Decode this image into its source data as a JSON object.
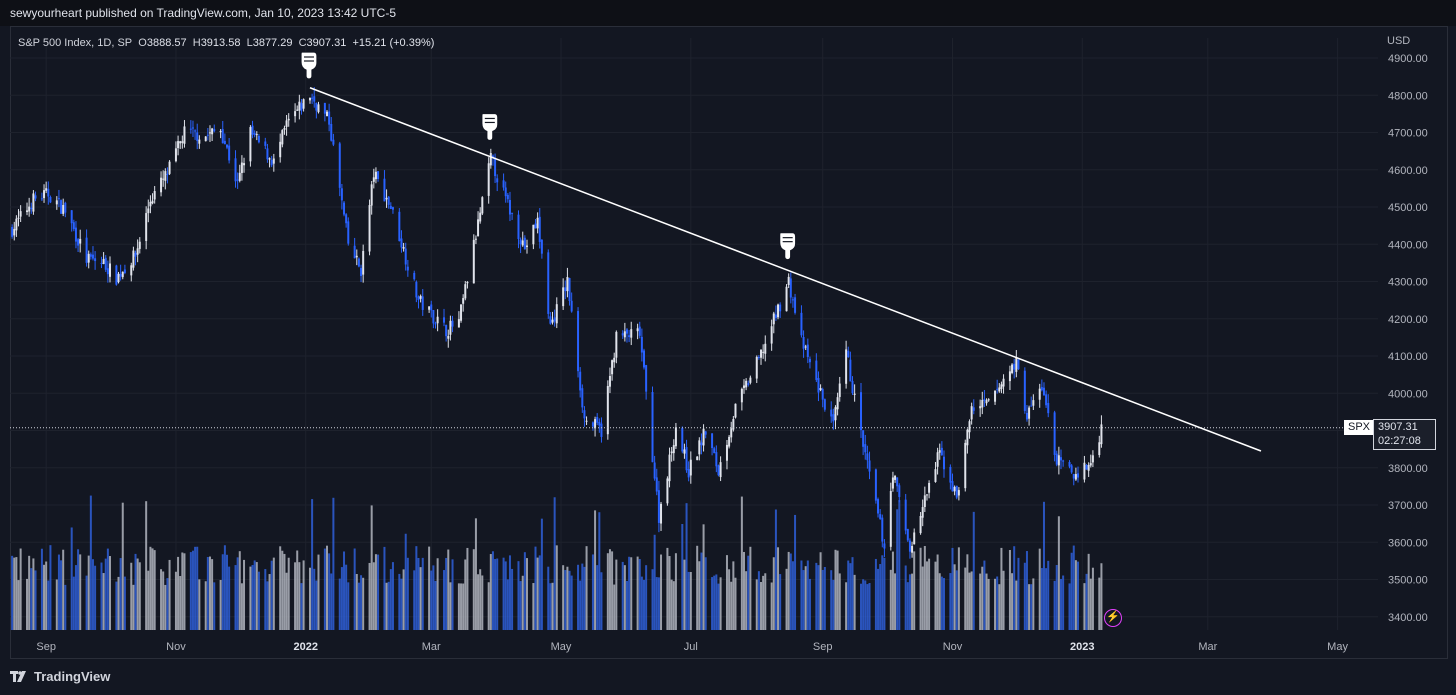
{
  "header": {
    "published_text": "sewyourheart published on TradingView.com, Jan 10, 2023 13:42 UTC-5"
  },
  "legend": {
    "symbol": "S&P 500 Index, 1D, SP",
    "open_label": "O",
    "open": "3888.57",
    "high_label": "H",
    "high": "3913.58",
    "low_label": "L",
    "low": "3877.29",
    "close_label": "C",
    "close": "3907.31",
    "change": "+15.21 (+0.39%)"
  },
  "price_tag": {
    "symbol": "SPX",
    "price": "3907.31",
    "countdown": "02:27:08"
  },
  "footer": {
    "brand": "TradingView"
  },
  "chart_data": {
    "type": "candlestick",
    "currency": "USD",
    "y_ticks": [
      4900,
      4800,
      4700,
      4600,
      4500,
      4400,
      4300,
      4200,
      4100,
      4000,
      3900,
      3800,
      3700,
      3600,
      3500,
      3400
    ],
    "y_tick_labels": [
      "4900.00",
      "4800.00",
      "4700.00",
      "4600.00",
      "4500.00",
      "4400.00",
      "4300.00",
      "4200.00",
      "4100.00",
      "4000.00",
      "3900.00",
      "3800.00",
      "3700.00",
      "3600.00",
      "3500.00",
      "3400.00"
    ],
    "ylim": [
      3370,
      4950
    ],
    "x_labels": [
      {
        "label": "Sep",
        "date": "2021-09-01",
        "bold": false
      },
      {
        "label": "Nov",
        "date": "2021-11-01",
        "bold": false
      },
      {
        "label": "2022",
        "date": "2022-01-01",
        "bold": true
      },
      {
        "label": "Mar",
        "date": "2022-03-01",
        "bold": false
      },
      {
        "label": "May",
        "date": "2022-05-01",
        "bold": false
      },
      {
        "label": "Jul",
        "date": "2022-07-01",
        "bold": false
      },
      {
        "label": "Sep",
        "date": "2022-09-01",
        "bold": false
      },
      {
        "label": "Nov",
        "date": "2022-11-01",
        "bold": false
      },
      {
        "label": "2023",
        "date": "2023-01-01",
        "bold": true
      },
      {
        "label": "Mar",
        "date": "2023-03-01",
        "bold": false
      },
      {
        "label": "May",
        "date": "2023-05-01",
        "bold": false
      }
    ],
    "xlim": [
      "2021-08-15",
      "2023-05-20"
    ],
    "price_points": [
      [
        "2021-08-16",
        4440
      ],
      [
        "2021-08-26",
        4520
      ],
      [
        "2021-09-02",
        4535
      ],
      [
        "2021-09-10",
        4490
      ],
      [
        "2021-09-20",
        4360
      ],
      [
        "2021-09-28",
        4350
      ],
      [
        "2021-10-04",
        4310
      ],
      [
        "2021-10-13",
        4370
      ],
      [
        "2021-10-20",
        4520
      ],
      [
        "2021-10-28",
        4590
      ],
      [
        "2021-11-05",
        4700
      ],
      [
        "2021-11-15",
        4690
      ],
      [
        "2021-11-22",
        4710
      ],
      [
        "2021-11-30",
        4560
      ],
      [
        "2021-12-06",
        4700
      ],
      [
        "2021-12-17",
        4620
      ],
      [
        "2021-12-23",
        4720
      ],
      [
        "2022-01-03",
        4800
      ],
      [
        "2022-01-12",
        4730
      ],
      [
        "2022-01-21",
        4400
      ],
      [
        "2022-01-27",
        4330
      ],
      [
        "2022-02-02",
        4590
      ],
      [
        "2022-02-10",
        4500
      ],
      [
        "2022-02-23",
        4250
      ],
      [
        "2022-03-08",
        4170
      ],
      [
        "2022-03-14",
        4190
      ],
      [
        "2022-03-29",
        4630
      ],
      [
        "2022-04-05",
        4520
      ],
      [
        "2022-04-14",
        4390
      ],
      [
        "2022-04-20",
        4460
      ],
      [
        "2022-04-26",
        4180
      ],
      [
        "2022-05-04",
        4300
      ],
      [
        "2022-05-12",
        3930
      ],
      [
        "2022-05-20",
        3900
      ],
      [
        "2022-05-27",
        4150
      ],
      [
        "2022-06-07",
        4160
      ],
      [
        "2022-06-16",
        3670
      ],
      [
        "2022-06-24",
        3910
      ],
      [
        "2022-06-30",
        3790
      ],
      [
        "2022-07-08",
        3900
      ],
      [
        "2022-07-14",
        3790
      ],
      [
        "2022-07-22",
        3960
      ],
      [
        "2022-08-02",
        4090
      ],
      [
        "2022-08-16",
        4300
      ],
      [
        "2022-08-22",
        4140
      ],
      [
        "2022-08-29",
        4030
      ],
      [
        "2022-09-06",
        3910
      ],
      [
        "2022-09-12",
        4110
      ],
      [
        "2022-09-20",
        3860
      ],
      [
        "2022-09-30",
        3590
      ],
      [
        "2022-10-04",
        3790
      ],
      [
        "2022-10-12",
        3580
      ],
      [
        "2022-10-21",
        3750
      ],
      [
        "2022-10-26",
        3840
      ],
      [
        "2022-11-03",
        3720
      ],
      [
        "2022-11-10",
        3960
      ],
      [
        "2022-11-18",
        3970
      ],
      [
        "2022-11-30",
        4080
      ],
      [
        "2022-12-01",
        4080
      ],
      [
        "2022-12-06",
        3940
      ],
      [
        "2022-12-13",
        4020
      ],
      [
        "2022-12-20",
        3820
      ],
      [
        "2022-12-28",
        3780
      ],
      [
        "2023-01-05",
        3810
      ],
      [
        "2023-01-10",
        3907
      ]
    ],
    "last_price": 3907.31,
    "trendline": {
      "start": [
        "2022-01-03",
        4820
      ],
      "end": [
        "2023-03-26",
        3845
      ]
    },
    "markers": [
      {
        "icon": "pointing-hand-icon",
        "date": "2022-01-03",
        "price": 4900
      },
      {
        "icon": "pointing-hand-icon",
        "date": "2022-03-29",
        "price": 4735
      },
      {
        "icon": "pointing-hand-icon",
        "date": "2022-08-16",
        "price": 4415
      }
    ],
    "colors": {
      "up": "#e0e3eb",
      "down": "#2962ff",
      "trendline": "#ffffff",
      "background": "#131722",
      "grid": "#1e222d"
    },
    "grid": true
  }
}
